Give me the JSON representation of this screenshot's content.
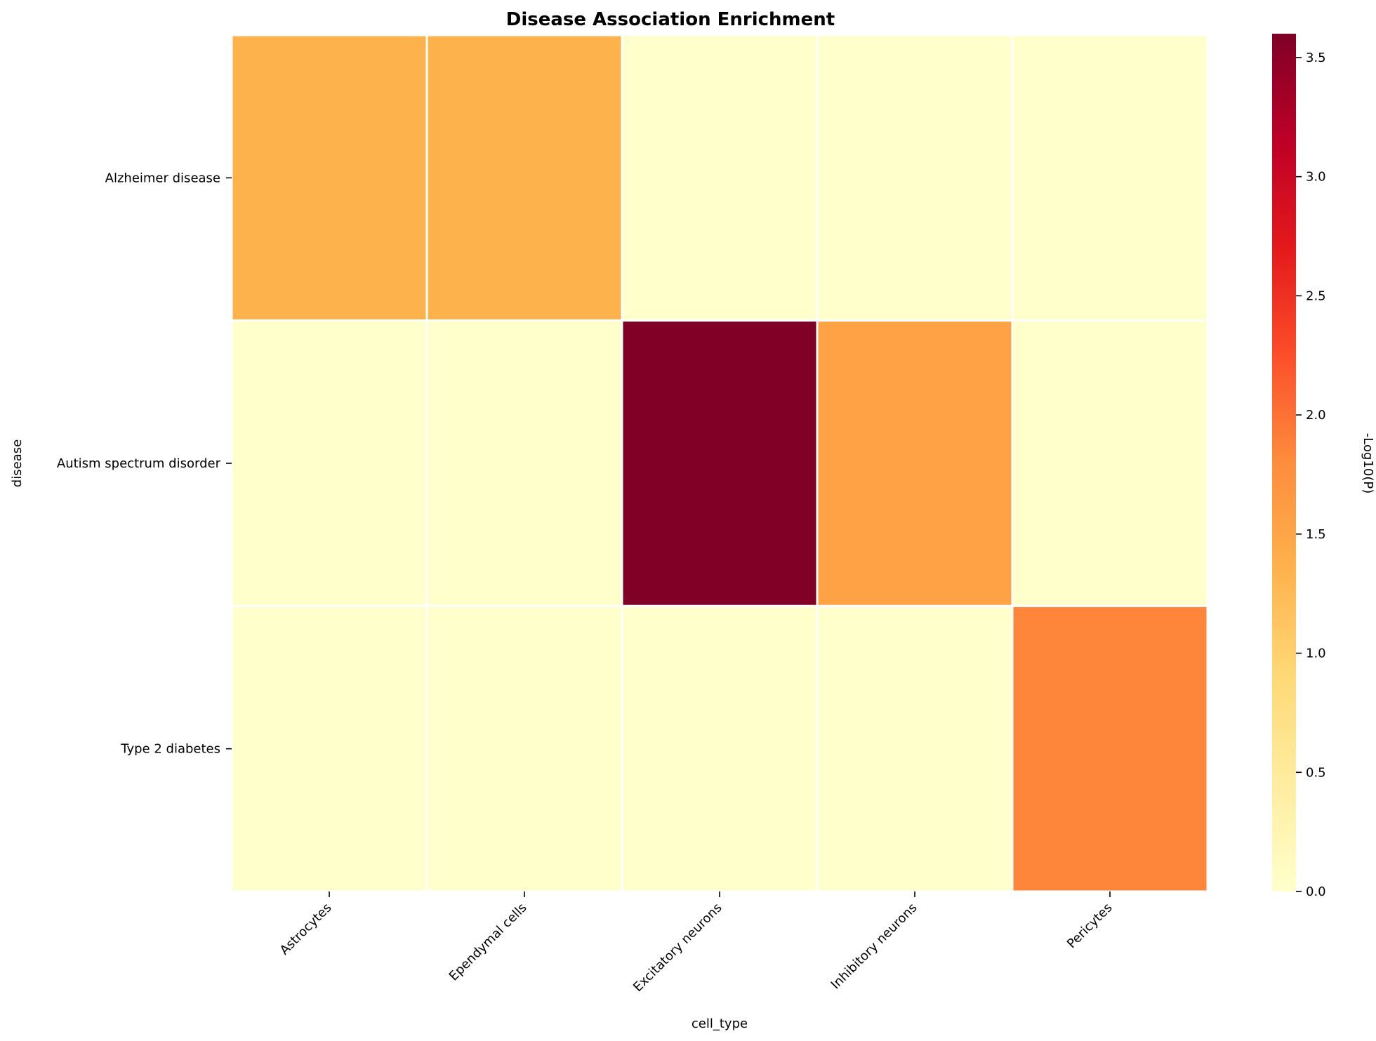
{
  "chart_data": {
    "type": "heatmap",
    "title": "Disease Association Enrichment",
    "xlabel": "cell_type",
    "ylabel": "disease",
    "x_categories": [
      "Astrocytes",
      "Ependymal cells",
      "Excitatory neurons",
      "Inhibitory neurons",
      "Pericytes"
    ],
    "y_categories": [
      "Alzheimer disease",
      "Autism spectrum disorder",
      "Type 2 diabetes"
    ],
    "values": [
      [
        1.35,
        1.35,
        0.0,
        0.0,
        0.0
      ],
      [
        0.0,
        0.0,
        3.6,
        1.55,
        0.0
      ],
      [
        0.0,
        0.0,
        0.0,
        0.0,
        1.85
      ]
    ],
    "colorbar": {
      "label": "-Log10(P)",
      "range": [
        0,
        3.6
      ],
      "ticks": [
        "0.0",
        "0.5",
        "1.0",
        "1.5",
        "2.0",
        "2.5",
        "3.0",
        "3.5"
      ],
      "colormap": "YlOrRd",
      "colors": [
        "#ffffcc",
        "#ffeda0",
        "#fed976",
        "#feb24c",
        "#fd8d3c",
        "#fc4e2a",
        "#e31a1c",
        "#bd0026",
        "#800026"
      ]
    },
    "grid_line_color": "#ffffff"
  }
}
